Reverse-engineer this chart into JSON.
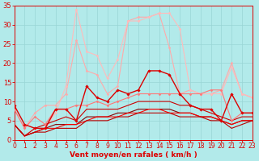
{
  "x": [
    0,
    1,
    2,
    3,
    4,
    5,
    6,
    7,
    8,
    9,
    10,
    11,
    12,
    13,
    14,
    15,
    16,
    17,
    18,
    19,
    20,
    21,
    22,
    23
  ],
  "series": [
    {
      "y": [
        4,
        1,
        3,
        4,
        5,
        6,
        5,
        8,
        8,
        8,
        8,
        9,
        10,
        10,
        10,
        10,
        9,
        9,
        8,
        7,
        6,
        5,
        6,
        6
      ],
      "color": "#cc0000",
      "lw": 0.8,
      "marker": null,
      "ms": 0,
      "zorder": 3
    },
    {
      "y": [
        4,
        1,
        2,
        3,
        4,
        4,
        4,
        6,
        6,
        6,
        7,
        7,
        8,
        8,
        8,
        8,
        7,
        7,
        6,
        6,
        5,
        4,
        5,
        5
      ],
      "color": "#880000",
      "lw": 0.8,
      "marker": null,
      "ms": 0,
      "zorder": 3
    },
    {
      "y": [
        4,
        1,
        2,
        3,
        3,
        4,
        4,
        5,
        6,
        6,
        6,
        7,
        7,
        8,
        8,
        7,
        7,
        7,
        6,
        6,
        5,
        4,
        5,
        5
      ],
      "color": "#ff0000",
      "lw": 0.8,
      "marker": null,
      "ms": 0,
      "zorder": 3
    },
    {
      "y": [
        4,
        1,
        2,
        2,
        3,
        3,
        3,
        5,
        5,
        5,
        6,
        6,
        7,
        7,
        7,
        7,
        6,
        6,
        6,
        5,
        5,
        3,
        4,
        5
      ],
      "color": "#bb0000",
      "lw": 0.8,
      "marker": null,
      "ms": 0,
      "zorder": 3
    },
    {
      "y": [
        9,
        4,
        3,
        3,
        8,
        8,
        5,
        14,
        11,
        10,
        13,
        12,
        13,
        18,
        18,
        17,
        12,
        9,
        8,
        8,
        5,
        12,
        7,
        7
      ],
      "color": "#dd0000",
      "lw": 1.0,
      "marker": "D",
      "ms": 1.8,
      "zorder": 5
    },
    {
      "y": [
        8,
        3,
        6,
        4,
        8,
        8,
        9,
        9,
        10,
        9,
        10,
        11,
        12,
        12,
        12,
        12,
        12,
        12,
        12,
        13,
        13,
        5,
        7,
        7
      ],
      "color": "#ff7777",
      "lw": 0.8,
      "marker": "D",
      "ms": 1.5,
      "zorder": 4
    },
    {
      "y": [
        8,
        3,
        7,
        9,
        9,
        12,
        26,
        18,
        17,
        12,
        14,
        31,
        32,
        32,
        33,
        24,
        12,
        13,
        12,
        12,
        13,
        20,
        12,
        11
      ],
      "color": "#ffaaaa",
      "lw": 0.8,
      "marker": "D",
      "ms": 1.5,
      "zorder": 2
    },
    {
      "y": [
        4,
        1,
        3,
        3,
        7,
        14,
        34,
        23,
        22,
        16,
        21,
        31,
        31,
        32,
        33,
        33,
        29,
        13,
        12,
        12,
        12,
        19,
        12,
        11
      ],
      "color": "#ffbbbb",
      "lw": 0.8,
      "marker": "D",
      "ms": 1.5,
      "zorder": 2
    }
  ],
  "xlim": [
    0,
    23
  ],
  "ylim": [
    0,
    35
  ],
  "yticks": [
    0,
    5,
    10,
    15,
    20,
    25,
    30,
    35
  ],
  "xticks": [
    0,
    1,
    2,
    3,
    4,
    5,
    6,
    7,
    8,
    9,
    10,
    11,
    12,
    13,
    14,
    15,
    16,
    17,
    18,
    19,
    20,
    21,
    22,
    23
  ],
  "xlabel": "Vent moyen/en rafales ( km/h )",
  "bg_color": "#b2eaea",
  "grid_color": "#99d5d5",
  "axis_color": "#dd0000",
  "label_color": "#dd0000",
  "tick_color": "#dd0000",
  "xlabel_fontsize": 6.5,
  "ytick_fontsize": 6,
  "xtick_fontsize": 5.5
}
